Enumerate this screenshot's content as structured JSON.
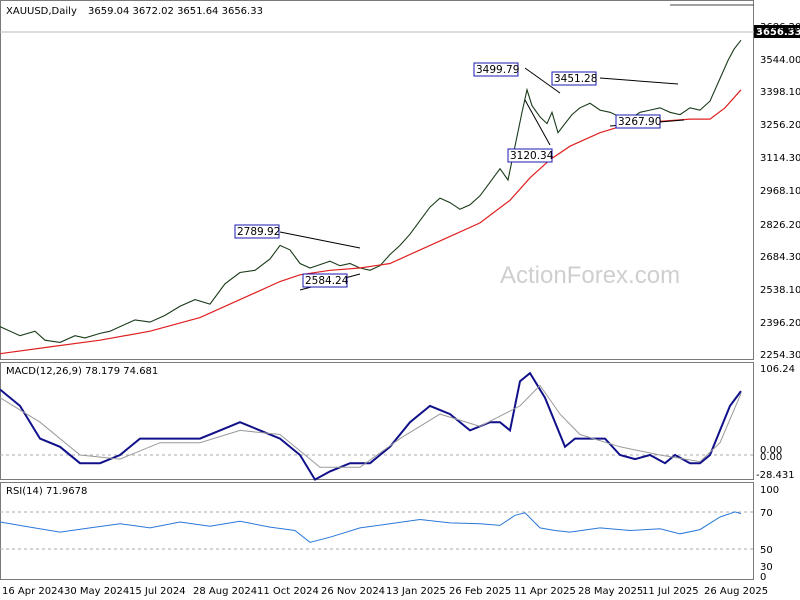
{
  "header": {
    "symbol_line": "XAUUSD,Daily",
    "ohlc": "3659.04 3672.02 3651.64 3656.33",
    "current_price": "3656.33"
  },
  "watermark": "ActionForex.com",
  "chart_data": [
    {
      "type": "candlestick",
      "title": "XAUUSD,Daily",
      "ylim": [
        2254.3,
        3686.2
      ],
      "y_ticks": [
        "3686.20",
        "3544.00",
        "3398.10",
        "3256.20",
        "3114.30",
        "2968.10",
        "2826.20",
        "2684.30",
        "2538.10",
        "2396.20",
        "2254.30"
      ],
      "x_ticks": [
        "16 Apr 2024",
        "30 May 2024",
        "15 Jul 2024",
        "28 Aug 2024",
        "11 Oct 2024",
        "26 Nov 2024",
        "13 Jan 2025",
        "26 Feb 2025",
        "11 Apr 2025",
        "28 May 2025",
        "11 Jul 2025",
        "26 Aug 2025"
      ],
      "annotations": [
        "2789.92",
        "2584.24",
        "3499.79",
        "3120.34",
        "3451.28",
        "3267.90"
      ],
      "series": [
        {
          "points": [
            [
              0,
              2380
            ],
            [
              20,
              2340
            ],
            [
              35,
              2360
            ],
            [
              45,
              2320
            ],
            [
              60,
              2310
            ],
            [
              75,
              2340
            ],
            [
              85,
              2330
            ],
            [
              100,
              2350
            ],
            [
              110,
              2360
            ],
            [
              125,
              2390
            ],
            [
              135,
              2410
            ],
            [
              150,
              2400
            ],
            [
              165,
              2430
            ],
            [
              180,
              2470
            ],
            [
              195,
              2500
            ],
            [
              210,
              2480
            ],
            [
              225,
              2570
            ],
            [
              240,
              2620
            ],
            [
              255,
              2630
            ],
            [
              270,
              2680
            ],
            [
              280,
              2740
            ],
            [
              290,
              2720
            ],
            [
              300,
              2660
            ],
            [
              310,
              2640
            ],
            [
              320,
              2655
            ],
            [
              330,
              2670
            ],
            [
              340,
              2650
            ],
            [
              350,
              2660
            ],
            [
              360,
              2640
            ],
            [
              370,
              2630
            ],
            [
              380,
              2650
            ],
            [
              390,
              2700
            ],
            [
              400,
              2740
            ],
            [
              410,
              2790
            ],
            [
              420,
              2850
            ],
            [
              430,
              2910
            ],
            [
              440,
              2950
            ],
            [
              450,
              2930
            ],
            [
              460,
              2900
            ],
            [
              470,
              2920
            ],
            [
              480,
              2960
            ],
            [
              490,
              3020
            ],
            [
              500,
              3080
            ],
            [
              508,
              3030
            ],
            [
              515,
              3180
            ],
            [
              522,
              3330
            ],
            [
              527,
              3430
            ],
            [
              532,
              3360
            ],
            [
              540,
              3310
            ],
            [
              547,
              3280
            ],
            [
              552,
              3330
            ],
            [
              558,
              3240
            ],
            [
              565,
              3280
            ],
            [
              572,
              3320
            ],
            [
              580,
              3350
            ],
            [
              590,
              3370
            ],
            [
              600,
              3340
            ],
            [
              610,
              3330
            ],
            [
              620,
              3310
            ],
            [
              630,
              3300
            ],
            [
              640,
              3330
            ],
            [
              650,
              3340
            ],
            [
              660,
              3350
            ],
            [
              670,
              3330
            ],
            [
              680,
              3320
            ],
            [
              690,
              3350
            ],
            [
              700,
              3340
            ],
            [
              710,
              3380
            ],
            [
              720,
              3480
            ],
            [
              728,
              3560
            ],
            [
              734,
              3610
            ],
            [
              741,
              3650
            ]
          ]
        },
        {
          "points": [
            [
              0,
              2260
            ],
            [
              50,
              2290
            ],
            [
              100,
              2320
            ],
            [
              150,
              2360
            ],
            [
              200,
              2420
            ],
            [
              250,
              2520
            ],
            [
              280,
              2580
            ],
            [
              300,
              2610
            ],
            [
              330,
              2630
            ],
            [
              360,
              2640
            ],
            [
              390,
              2660
            ],
            [
              420,
              2720
            ],
            [
              450,
              2780
            ],
            [
              480,
              2840
            ],
            [
              510,
              2940
            ],
            [
              530,
              3040
            ],
            [
              550,
              3120
            ],
            [
              570,
              3180
            ],
            [
              600,
              3240
            ],
            [
              630,
              3280
            ],
            [
              660,
              3290
            ],
            [
              690,
              3300
            ],
            [
              710,
              3300
            ],
            [
              725,
              3350
            ],
            [
              741,
              3430
            ]
          ]
        }
      ]
    },
    {
      "type": "line",
      "title": "MACD(12,26,9) 78.179 74.681",
      "y_ticks": [
        "106.24",
        "0.00",
        "0.00",
        "-28.431"
      ],
      "series": [
        {
          "points": [
            [
              0,
              80
            ],
            [
              20,
              60
            ],
            [
              40,
              20
            ],
            [
              60,
              10
            ],
            [
              80,
              -10
            ],
            [
              100,
              -10
            ],
            [
              120,
              0
            ],
            [
              140,
              20
            ],
            [
              160,
              20
            ],
            [
              180,
              20
            ],
            [
              200,
              20
            ],
            [
              220,
              30
            ],
            [
              240,
              40
            ],
            [
              260,
              30
            ],
            [
              280,
              20
            ],
            [
              300,
              0
            ],
            [
              315,
              -30
            ],
            [
              330,
              -20
            ],
            [
              350,
              -10
            ],
            [
              370,
              -10
            ],
            [
              390,
              10
            ],
            [
              410,
              40
            ],
            [
              430,
              60
            ],
            [
              450,
              50
            ],
            [
              470,
              30
            ],
            [
              490,
              40
            ],
            [
              500,
              40
            ],
            [
              510,
              30
            ],
            [
              520,
              90
            ],
            [
              530,
              100
            ],
            [
              545,
              70
            ],
            [
              555,
              40
            ],
            [
              565,
              10
            ],
            [
              575,
              20
            ],
            [
              590,
              20
            ],
            [
              605,
              20
            ],
            [
              620,
              0
            ],
            [
              635,
              -5
            ],
            [
              650,
              0
            ],
            [
              665,
              -10
            ],
            [
              675,
              0
            ],
            [
              690,
              -10
            ],
            [
              700,
              -10
            ],
            [
              710,
              0
            ],
            [
              720,
              30
            ],
            [
              730,
              60
            ],
            [
              741,
              78
            ]
          ]
        },
        {
          "points": [
            [
              0,
              70
            ],
            [
              40,
              40
            ],
            [
              80,
              0
            ],
            [
              120,
              -5
            ],
            [
              160,
              15
            ],
            [
              200,
              15
            ],
            [
              240,
              30
            ],
            [
              280,
              25
            ],
            [
              320,
              -15
            ],
            [
              360,
              -15
            ],
            [
              400,
              20
            ],
            [
              440,
              50
            ],
            [
              480,
              35
            ],
            [
              520,
              60
            ],
            [
              540,
              85
            ],
            [
              560,
              50
            ],
            [
              580,
              25
            ],
            [
              620,
              10
            ],
            [
              660,
              0
            ],
            [
              700,
              -8
            ],
            [
              720,
              15
            ],
            [
              741,
              75
            ]
          ]
        }
      ]
    },
    {
      "type": "line",
      "title": "RSI(14) 71.9678",
      "y_ticks": [
        "100",
        "70",
        "50",
        "30",
        "0"
      ],
      "series": [
        {
          "points": [
            [
              0,
              62
            ],
            [
              30,
              56
            ],
            [
              60,
              50
            ],
            [
              90,
              55
            ],
            [
              120,
              60
            ],
            [
              150,
              55
            ],
            [
              180,
              62
            ],
            [
              210,
              57
            ],
            [
              240,
              63
            ],
            [
              270,
              56
            ],
            [
              295,
              52
            ],
            [
              310,
              38
            ],
            [
              330,
              44
            ],
            [
              360,
              55
            ],
            [
              390,
              60
            ],
            [
              420,
              65
            ],
            [
              450,
              61
            ],
            [
              480,
              60
            ],
            [
              500,
              58
            ],
            [
              515,
              70
            ],
            [
              525,
              73
            ],
            [
              540,
              55
            ],
            [
              555,
              52
            ],
            [
              570,
              50
            ],
            [
              600,
              55
            ],
            [
              630,
              52
            ],
            [
              660,
              54
            ],
            [
              680,
              48
            ],
            [
              700,
              53
            ],
            [
              720,
              68
            ],
            [
              735,
              74
            ],
            [
              741,
              72
            ]
          ]
        }
      ]
    }
  ]
}
